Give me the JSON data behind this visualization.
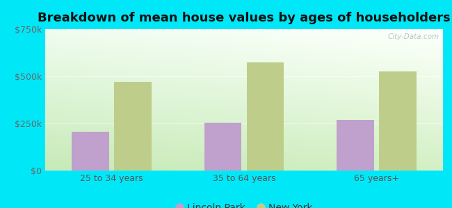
{
  "title": "Breakdown of mean house values by ages of householders",
  "categories": [
    "25 to 34 years",
    "35 to 64 years",
    "65 years+"
  ],
  "lincoln_park": [
    205000,
    255000,
    270000
  ],
  "new_york": [
    470000,
    575000,
    525000
  ],
  "ylim": [
    0,
    750000
  ],
  "yticks": [
    0,
    250000,
    500000,
    750000
  ],
  "ytick_labels": [
    "$0",
    "$250k",
    "$500k",
    "$750k"
  ],
  "bar_color_lp": "#c0a0cc",
  "bar_color_ny": "#bece8a",
  "legend_lp": "Lincoln Park",
  "legend_ny": "New York",
  "bg_outer": "#00e8f8",
  "title_fontsize": 13,
  "axis_label_fontsize": 9,
  "legend_fontsize": 10,
  "bar_width": 0.28,
  "watermark": "City-Data.com"
}
